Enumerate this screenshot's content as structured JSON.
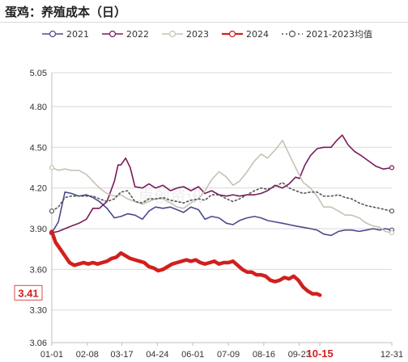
{
  "title": "蛋鸡：养殖成本（日）",
  "watermark": "卓创资讯",
  "chart_data": {
    "type": "line",
    "title": "蛋鸡：养殖成本（日）",
    "xlabel": "",
    "ylabel": "",
    "ylim": [
      3.06,
      5.05
    ],
    "yticks": [
      "3.06",
      "3.30",
      "3.60",
      "3.90",
      "4.20",
      "4.50",
      "4.80",
      "5.05"
    ],
    "ytick_values": [
      3.06,
      3.3,
      3.6,
      3.9,
      4.2,
      4.5,
      4.8,
      5.05
    ],
    "xtick_labels": [
      "01-01",
      "02-08",
      "03-17",
      "04-24",
      "06-01",
      "07-09",
      "08-16",
      "09-23",
      "10-15",
      "12-31"
    ],
    "xtick_days": [
      1,
      39,
      76,
      114,
      152,
      190,
      228,
      266,
      288,
      365
    ],
    "highlight_tick": "10-15",
    "last_value_label": "3.41",
    "x_unit": "day of year",
    "grid": "horizontal",
    "legend_position": "top",
    "series": [
      {
        "name": "2021",
        "color": "#4a4a8c",
        "width": 1.6,
        "dash": "none",
        "marker": "open-circle",
        "x": [
          1,
          8,
          15,
          22,
          30,
          38,
          45,
          52,
          60,
          68,
          75,
          82,
          90,
          98,
          105,
          112,
          120,
          128,
          135,
          142,
          150,
          158,
          165,
          172,
          180,
          188,
          195,
          202,
          210,
          218,
          225,
          232,
          240,
          248,
          255,
          262,
          270,
          278,
          285,
          292,
          300,
          308,
          315,
          322,
          330,
          338,
          345,
          352,
          358,
          365
        ],
        "y": [
          3.87,
          3.95,
          4.17,
          4.16,
          4.14,
          4.15,
          4.13,
          4.1,
          4.05,
          3.98,
          3.99,
          4.01,
          4.0,
          3.97,
          4.03,
          4.06,
          4.05,
          4.06,
          4.04,
          4.02,
          4.06,
          4.04,
          3.97,
          3.99,
          3.98,
          3.94,
          3.93,
          3.96,
          3.98,
          3.99,
          3.98,
          3.96,
          3.95,
          3.94,
          3.93,
          3.92,
          3.91,
          3.9,
          3.89,
          3.86,
          3.85,
          3.88,
          3.89,
          3.89,
          3.88,
          3.89,
          3.9,
          3.89,
          3.9,
          3.89
        ]
      },
      {
        "name": "2022",
        "color": "#7a1a5a",
        "width": 1.6,
        "dash": "none",
        "marker": "open-circle",
        "x": [
          1,
          8,
          15,
          22,
          30,
          38,
          45,
          52,
          60,
          68,
          72,
          75,
          80,
          85,
          90,
          98,
          105,
          112,
          120,
          128,
          135,
          142,
          150,
          158,
          165,
          172,
          180,
          188,
          195,
          202,
          210,
          218,
          225,
          232,
          240,
          248,
          255,
          262,
          266,
          272,
          278,
          285,
          292,
          300,
          306,
          312,
          318,
          325,
          332,
          340,
          348,
          356,
          365
        ],
        "y": [
          3.87,
          3.88,
          3.9,
          3.92,
          3.94,
          3.97,
          4.05,
          4.05,
          4.1,
          4.25,
          4.37,
          4.37,
          4.42,
          4.35,
          4.21,
          4.2,
          4.23,
          4.2,
          4.22,
          4.18,
          4.2,
          4.21,
          4.18,
          4.21,
          4.16,
          4.18,
          4.15,
          4.14,
          4.15,
          4.14,
          4.15,
          4.15,
          4.16,
          4.18,
          4.22,
          4.2,
          4.23,
          4.28,
          4.27,
          4.37,
          4.44,
          4.49,
          4.5,
          4.5,
          4.55,
          4.59,
          4.52,
          4.47,
          4.44,
          4.4,
          4.36,
          4.34,
          4.35
        ]
      },
      {
        "name": "2023",
        "color": "#c8c2b2",
        "width": 1.6,
        "dash": "none",
        "marker": "open-circle",
        "x": [
          1,
          8,
          15,
          22,
          30,
          38,
          45,
          52,
          60,
          68,
          75,
          82,
          90,
          98,
          105,
          112,
          120,
          128,
          135,
          142,
          150,
          158,
          165,
          172,
          180,
          188,
          195,
          202,
          210,
          218,
          225,
          232,
          240,
          248,
          255,
          262,
          270,
          278,
          285,
          292,
          300,
          308,
          315,
          322,
          330,
          338,
          345,
          352,
          358,
          365
        ],
        "y": [
          4.35,
          4.33,
          4.34,
          4.33,
          4.33,
          4.3,
          4.25,
          4.2,
          4.16,
          4.14,
          4.15,
          4.12,
          4.1,
          4.08,
          4.1,
          4.12,
          4.12,
          4.09,
          4.06,
          4.05,
          4.09,
          4.12,
          4.18,
          4.26,
          4.32,
          4.28,
          4.22,
          4.25,
          4.32,
          4.4,
          4.45,
          4.42,
          4.48,
          4.55,
          4.45,
          4.35,
          4.24,
          4.2,
          4.14,
          4.06,
          4.06,
          4.03,
          4.0,
          4.0,
          3.98,
          3.94,
          3.92,
          3.91,
          3.88,
          3.87
        ]
      },
      {
        "name": "2024",
        "color": "#d0201e",
        "width": 4.5,
        "dash": "none",
        "marker": "none",
        "x": [
          1,
          5,
          10,
          15,
          20,
          25,
          30,
          35,
          40,
          45,
          50,
          55,
          60,
          65,
          70,
          75,
          80,
          85,
          90,
          95,
          100,
          105,
          110,
          115,
          120,
          125,
          130,
          135,
          140,
          145,
          150,
          155,
          160,
          165,
          170,
          175,
          180,
          185,
          190,
          195,
          200,
          205,
          210,
          215,
          220,
          225,
          230,
          235,
          240,
          245,
          250,
          255,
          260,
          265,
          270,
          275,
          280,
          285,
          288
        ],
        "y": [
          3.88,
          3.8,
          3.75,
          3.7,
          3.65,
          3.63,
          3.64,
          3.65,
          3.64,
          3.65,
          3.64,
          3.65,
          3.66,
          3.68,
          3.69,
          3.72,
          3.7,
          3.68,
          3.67,
          3.66,
          3.65,
          3.62,
          3.61,
          3.59,
          3.6,
          3.62,
          3.64,
          3.65,
          3.66,
          3.67,
          3.66,
          3.67,
          3.65,
          3.64,
          3.65,
          3.66,
          3.64,
          3.65,
          3.65,
          3.66,
          3.63,
          3.6,
          3.58,
          3.58,
          3.56,
          3.56,
          3.55,
          3.52,
          3.51,
          3.52,
          3.54,
          3.53,
          3.55,
          3.52,
          3.47,
          3.44,
          3.42,
          3.42,
          3.41
        ]
      },
      {
        "name": "2021-2023均值",
        "color": "#555555",
        "width": 1.6,
        "dash": "2,3",
        "marker": "open-circle",
        "x": [
          1,
          8,
          15,
          22,
          30,
          38,
          45,
          52,
          60,
          68,
          75,
          82,
          90,
          98,
          105,
          112,
          120,
          128,
          135,
          142,
          150,
          158,
          165,
          172,
          180,
          188,
          195,
          202,
          210,
          218,
          225,
          232,
          240,
          248,
          255,
          262,
          270,
          278,
          285,
          292,
          300,
          308,
          315,
          322,
          330,
          338,
          345,
          352,
          358,
          365
        ],
        "y": [
          4.03,
          4.06,
          4.13,
          4.14,
          4.14,
          4.14,
          4.14,
          4.12,
          4.1,
          4.12,
          4.17,
          4.18,
          4.1,
          4.09,
          4.12,
          4.12,
          4.13,
          4.11,
          4.1,
          4.09,
          4.11,
          4.12,
          4.11,
          4.15,
          4.15,
          4.12,
          4.1,
          4.12,
          4.15,
          4.18,
          4.2,
          4.19,
          4.21,
          4.24,
          4.2,
          4.18,
          4.16,
          4.17,
          4.17,
          4.14,
          4.14,
          4.15,
          4.13,
          4.12,
          4.09,
          4.07,
          4.06,
          4.05,
          4.04,
          4.03
        ]
      }
    ]
  }
}
